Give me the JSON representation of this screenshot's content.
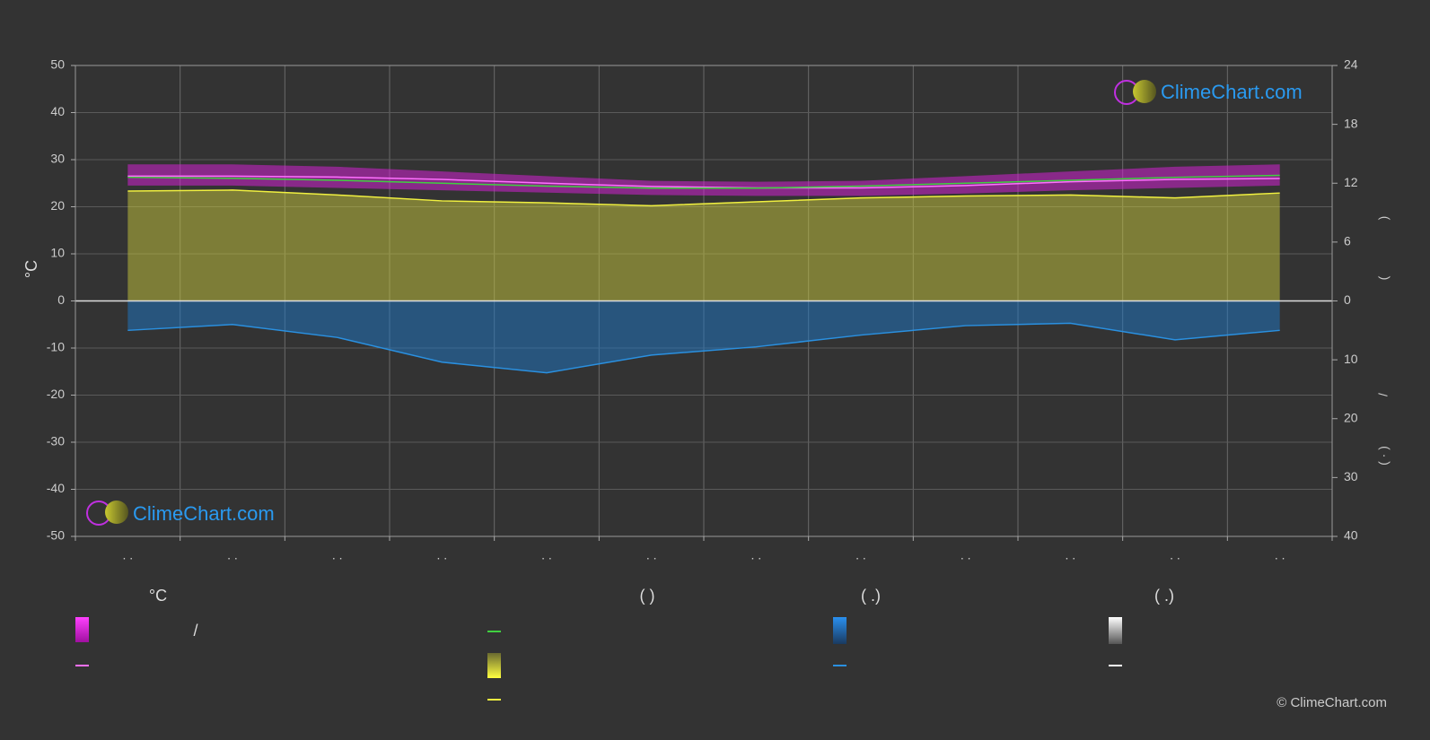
{
  "chart_data": {
    "type": "line",
    "ylabel": "°C",
    "ylim": [
      -50,
      50
    ],
    "yticks": [
      -50,
      -40,
      -30,
      -20,
      -10,
      0,
      10,
      20,
      30,
      40,
      50
    ],
    "y2lim": [
      -24,
      24
    ],
    "y2ticks": [
      0,
      6,
      12,
      18,
      24
    ],
    "y3lim": [
      40,
      -40
    ],
    "y3ticks": [
      10,
      20,
      30,
      40
    ],
    "right_labels": [
      ")",
      "(",
      "/",
      "( · )"
    ],
    "categories": [
      ". .",
      ". .",
      ". .",
      ". .",
      ". .",
      ". .",
      ". .",
      ". .",
      ". .",
      ". .",
      ". .",
      ". ."
    ],
    "grid": true,
    "series": [
      {
        "kind": "band",
        "color": "#d020d0",
        "values": [
          29,
          29,
          28.5,
          27.5,
          26.5,
          25.5,
          25.3,
          25.5,
          26.5,
          27.5,
          28.5,
          29
        ],
        "low": [
          24.5,
          24.5,
          24,
          23.5,
          23,
          22.5,
          22.3,
          22.3,
          22.8,
          23.5,
          24,
          24.5
        ]
      },
      {
        "kind": "area",
        "axis": "y2",
        "color": "#c8c83c",
        "values": [
          11.2,
          11.3,
          10.8,
          10.2,
          10.0,
          9.7,
          10.1,
          10.5,
          10.7,
          10.8,
          10.5,
          11.0
        ]
      },
      {
        "kind": "area",
        "axis": "y3",
        "color": "#1e78c8",
        "values": [
          5.0,
          4.0,
          6.2,
          10.4,
          12.2,
          9.2,
          7.8,
          5.8,
          4.2,
          3.8,
          6.6,
          5.0
        ]
      },
      {
        "kind": "line",
        "color": "#ff70ff",
        "values": [
          26.5,
          26.5,
          26.3,
          25.8,
          25,
          24.3,
          24,
          24,
          24.5,
          25.3,
          25.8,
          26
        ]
      },
      {
        "kind": "line",
        "axis": "y2",
        "color": "#40d040",
        "values": [
          12.6,
          12.5,
          12.3,
          12.0,
          11.7,
          11.5,
          11.5,
          11.7,
          12.0,
          12.3,
          12.6,
          12.8
        ]
      },
      {
        "kind": "line",
        "axis": "y2",
        "color": "#f0f040",
        "values": [
          11.2,
          11.3,
          10.8,
          10.2,
          10.0,
          9.7,
          10.1,
          10.5,
          10.7,
          10.8,
          10.5,
          11.0
        ]
      },
      {
        "kind": "line",
        "axis": "y3",
        "color": "#2a90e0",
        "values": [
          5.0,
          4.0,
          6.2,
          10.4,
          12.2,
          9.2,
          7.8,
          5.8,
          4.2,
          3.8,
          6.6,
          5.0
        ]
      }
    ],
    "legend": {
      "headings": [
        "°C",
        "(          )",
        "(   .)",
        "(   .)"
      ],
      "separator": "/"
    },
    "watermark": "ClimeChart.com",
    "copyright": "© ClimeChart.com"
  }
}
